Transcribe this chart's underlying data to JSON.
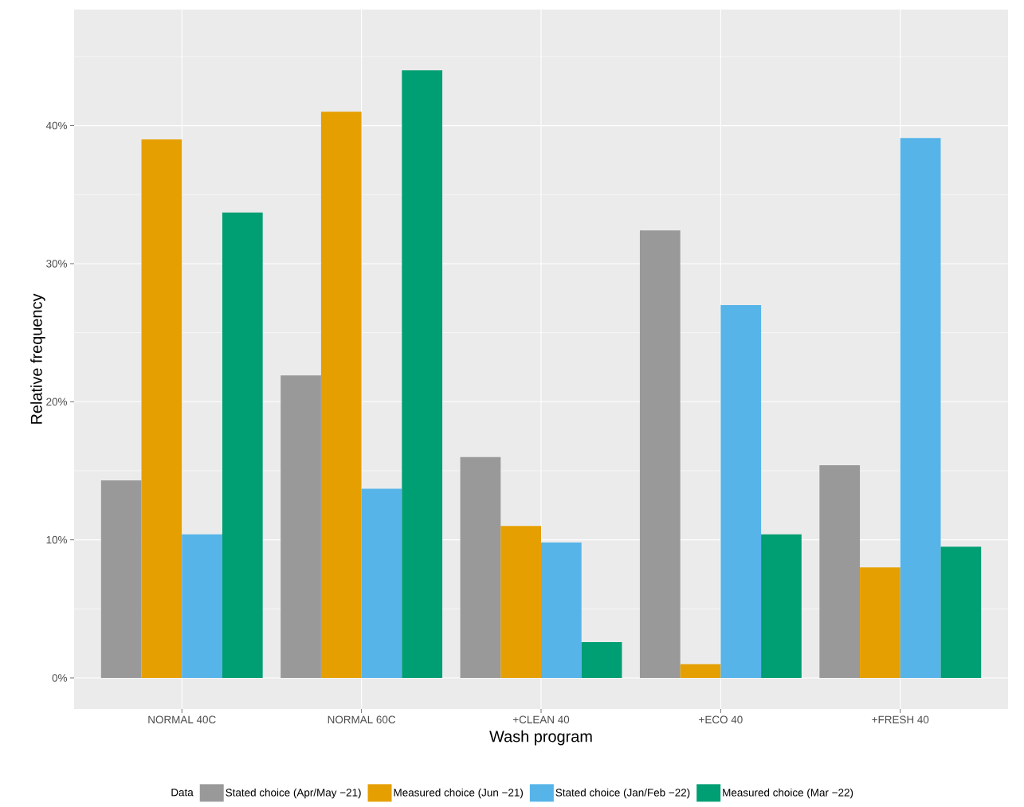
{
  "chart_data": {
    "type": "bar",
    "xlabel": "Wash program",
    "ylabel": "Relative frequency",
    "legend_title": "Data",
    "categories": [
      "NORMAL 40C",
      "NORMAL 60C",
      "+CLEAN 40",
      "+ECO 40",
      "+FRESH 40"
    ],
    "series": [
      {
        "name": "Stated choice (Apr/May −21)",
        "color": "#999999",
        "values": [
          14.3,
          21.9,
          16.0,
          32.4,
          15.4
        ]
      },
      {
        "name": "Measured choice (Jun −21)",
        "color": "#e69f00",
        "values": [
          39.0,
          41.0,
          11.0,
          1.0,
          8.0
        ]
      },
      {
        "name": "Stated choice (Jan/Feb −22)",
        "color": "#56b4e9",
        "values": [
          10.4,
          13.7,
          9.8,
          27.0,
          39.1
        ]
      },
      {
        "name": "Measured choice (Mar −22)",
        "color": "#009e73",
        "values": [
          33.7,
          44.0,
          2.6,
          10.4,
          9.5
        ]
      }
    ],
    "ylim": [
      -2.25,
      48.4
    ],
    "yticks": [
      {
        "value": 0,
        "label": "0%"
      },
      {
        "value": 10,
        "label": "10%"
      },
      {
        "value": 20,
        "label": "20%"
      },
      {
        "value": 30,
        "label": "30%"
      },
      {
        "value": 40,
        "label": "40%"
      }
    ],
    "grid": true,
    "legend": "bottom"
  }
}
